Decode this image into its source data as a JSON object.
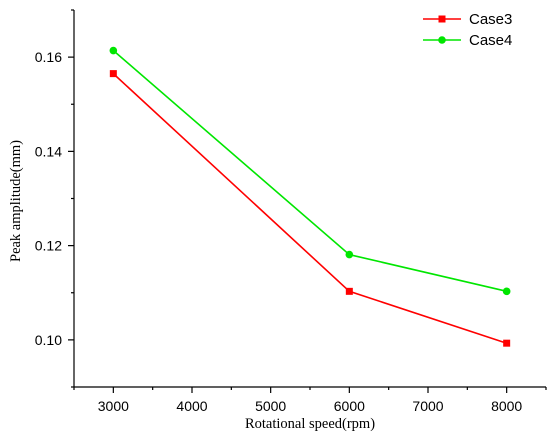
{
  "chart_data": {
    "type": "line",
    "xlabel": "Rotational speed(rpm)",
    "ylabel": "Peak amplitude(mm)",
    "xlim": [
      2500,
      8500
    ],
    "ylim": [
      0.09,
      0.17
    ],
    "xticks": [
      "3000",
      "4000",
      "5000",
      "6000",
      "7000",
      "8000"
    ],
    "yticks": [
      "0.10",
      "0.12",
      "0.14",
      "0.16"
    ],
    "legend_position": "top-right",
    "grid": false,
    "series": [
      {
        "name": "Case3",
        "color": "#ff0000",
        "marker": "square",
        "points": [
          {
            "x": 3000,
            "y": 0.1565
          },
          {
            "x": 6000,
            "y": 0.1103
          },
          {
            "x": 8000,
            "y": 0.0993
          }
        ]
      },
      {
        "name": "Case4",
        "color": "#00e600",
        "marker": "circle",
        "points": [
          {
            "x": 3000,
            "y": 0.1614
          },
          {
            "x": 6000,
            "y": 0.1181
          },
          {
            "x": 8000,
            "y": 0.1103
          }
        ]
      }
    ]
  }
}
